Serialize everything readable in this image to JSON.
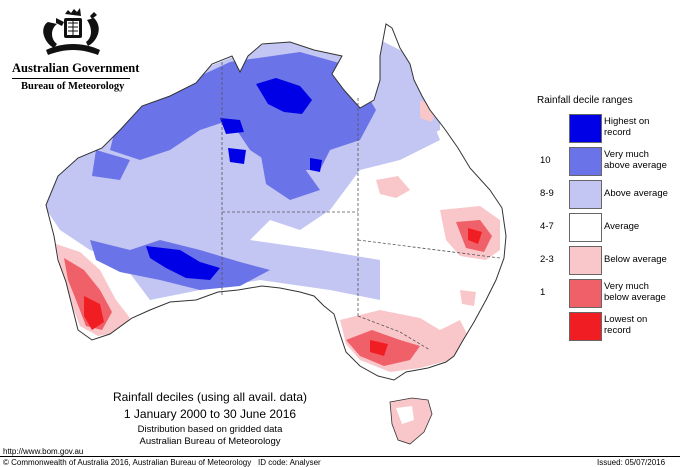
{
  "header": {
    "government": "Australian Government",
    "bureau": "Bureau of Meteorology"
  },
  "legend": {
    "title": "Rainfall decile ranges",
    "items": [
      {
        "code": "",
        "label_lines": [
          "Highest on",
          "record"
        ],
        "color": "#0000e6"
      },
      {
        "code": "10",
        "label_lines": [
          "Very much",
          "above average"
        ],
        "color": "#6a73e8"
      },
      {
        "code": "8-9",
        "label_lines": [
          "Above average"
        ],
        "color": "#c3c6f3"
      },
      {
        "code": "4-7",
        "label_lines": [
          "Average"
        ],
        "color": "#ffffff"
      },
      {
        "code": "2-3",
        "label_lines": [
          "Below average"
        ],
        "color": "#f9c6c9"
      },
      {
        "code": "1",
        "label_lines": [
          "Very much",
          "below average"
        ],
        "color": "#ef6068"
      },
      {
        "code": "",
        "label_lines": [
          "Lowest on",
          "record"
        ],
        "color": "#f01e23"
      }
    ]
  },
  "caption": {
    "title": "Rainfall deciles (using all avail. data)",
    "period": "1 January 2000 to 30 June 2016",
    "note1": "Distribution based on gridded data",
    "note2": "Australian Bureau of Meteorology"
  },
  "footer": {
    "url": "http://www.bom.gov.au",
    "copyright": "© Commonwealth of Australia 2016, Australian Bureau of Meteorology",
    "id_code": "ID code: Analyser",
    "issued": "Issued: 05/07/2016"
  }
}
